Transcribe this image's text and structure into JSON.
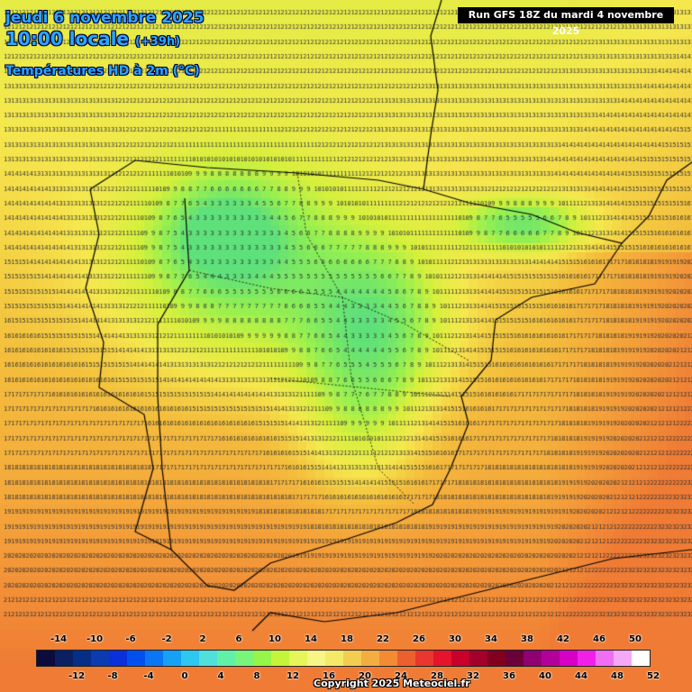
{
  "header": {
    "date_line": "jeudi 6 novembre 2025",
    "time_line": "10:00 locale",
    "offset": "(+39h)",
    "field": "Températures HD à 2m (°C)",
    "run": "Run GFS 18Z du mardi 4 novembre 2025"
  },
  "legend": {
    "top_labels": [
      "-14",
      "-10",
      "-6",
      "-2",
      "2",
      "6",
      "10",
      "14",
      "18",
      "22",
      "26",
      "30",
      "34",
      "38",
      "42",
      "46",
      "50"
    ],
    "bottom_labels": [
      "-12",
      "-8",
      "-4",
      "0",
      "4",
      "8",
      "12",
      "16",
      "20",
      "24",
      "28",
      "32",
      "36",
      "40",
      "44",
      "48",
      "52"
    ],
    "colors": [
      "#0d0b3d",
      "#0a2063",
      "#072e86",
      "#0a3bb0",
      "#0b2fd8",
      "#0050f0",
      "#0b76f3",
      "#16a1f5",
      "#2ec7f0",
      "#4fe0d9",
      "#61f0a8",
      "#7af57b",
      "#95f548",
      "#c4f53a",
      "#e6f55a",
      "#f7f585",
      "#f5e96a",
      "#f2cd52",
      "#f3ad41",
      "#f28b33",
      "#ee5f2e",
      "#e8372c",
      "#e6142a",
      "#c8002a",
      "#a3002a",
      "#82001f",
      "#6b0039",
      "#8f0072",
      "#b4009a",
      "#d800c5",
      "#f020e8",
      "#f06ef2",
      "#f5a8f5",
      "#ffffff"
    ]
  },
  "footer": {
    "copyright": "Copyright 2025 Meteociel.fr"
  },
  "map": {
    "region": "Iberian Peninsula",
    "variable": "temperature_2m",
    "units": "°C",
    "value_range": [
      3,
      23
    ],
    "colors": {
      "cold": "#5ee07a",
      "mid": "#f5e84e",
      "warm": "#f4a03a",
      "hot": "#ef7b34",
      "border": "#000000"
    }
  }
}
